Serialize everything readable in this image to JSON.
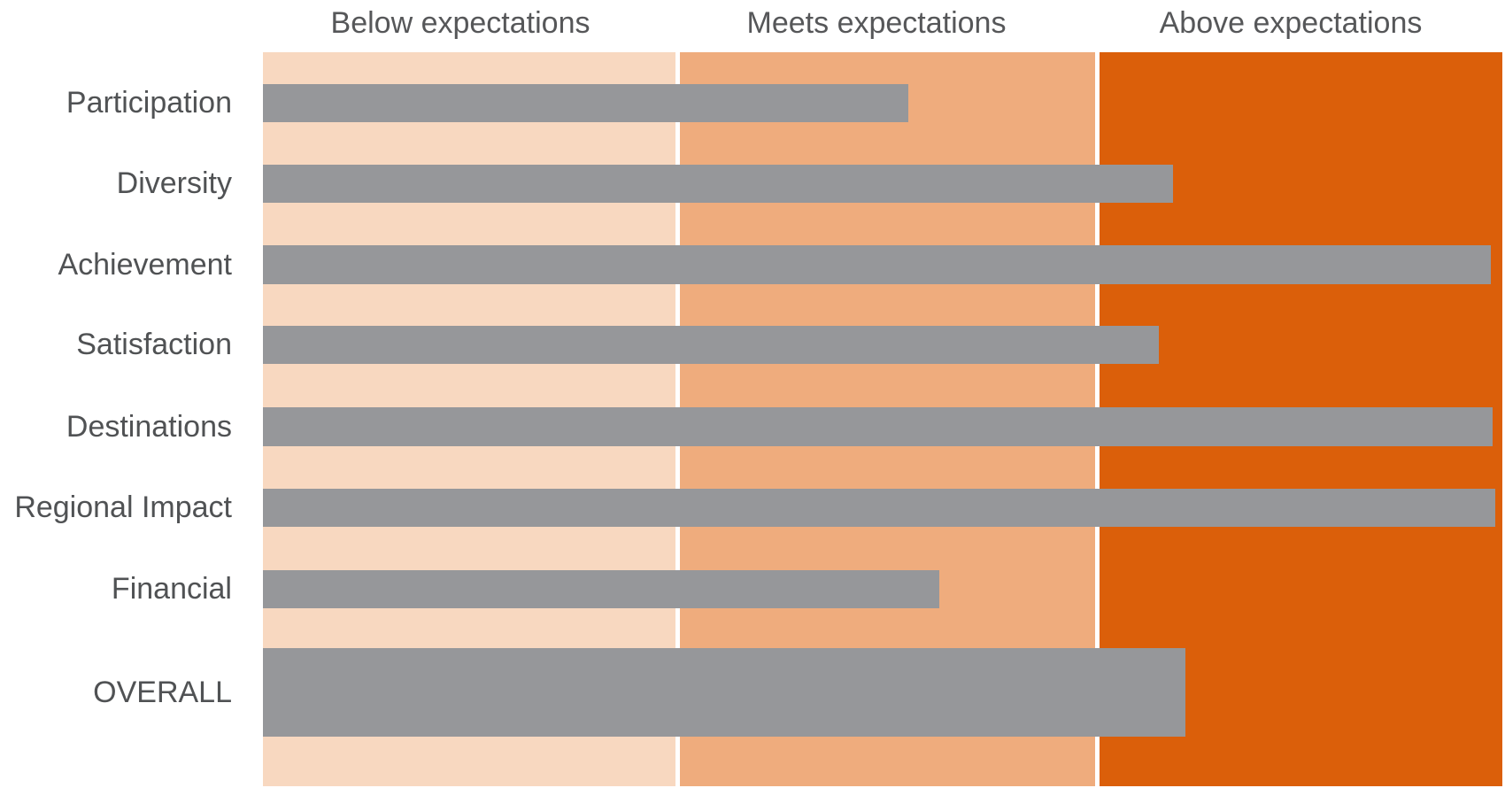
{
  "chart_data": {
    "type": "bar",
    "orientation": "horizontal",
    "title": "",
    "headers": [
      "Below expectations",
      "Meets expectations",
      "Above expectations"
    ],
    "categories": [
      "Participation",
      "Diversity",
      "Achievement",
      "Satisfaction",
      "Destinations",
      "Regional Impact",
      "Financial",
      "OVERALL"
    ],
    "values": [
      52.1,
      73.4,
      99.1,
      72.3,
      99.2,
      99.4,
      54.6,
      74.4
    ],
    "values_unit": "percent of full scale width",
    "ratings": [
      "Meets expectations",
      "Above expectations",
      "Above expectations",
      "Above expectations",
      "Above expectations",
      "Above expectations",
      "Meets expectations",
      "Above expectations"
    ],
    "scale": {
      "min_pct": 0,
      "max_pct": 100,
      "bands": [
        {
          "label": "Below expectations",
          "range_pct": [
            0,
            33.3
          ],
          "color": "#F8D8C0"
        },
        {
          "label": "Meets expectations",
          "range_pct": [
            33.6,
            67.1
          ],
          "color": "#EFAC7D"
        },
        {
          "label": "Above expectations",
          "range_pct": [
            67.5,
            100
          ],
          "color": "#DB5F0A"
        }
      ]
    },
    "bar_color": "#96979A",
    "grid": false,
    "legend_position": "none",
    "axis_tick_labels": "none"
  },
  "colors": {
    "band_below": "#F8D8C0",
    "band_meets": "#EFAC7D",
    "band_above": "#DB5F0A",
    "bar_gray": "#96979A",
    "text_gray": "#535456",
    "background": "#FFFFFF"
  }
}
